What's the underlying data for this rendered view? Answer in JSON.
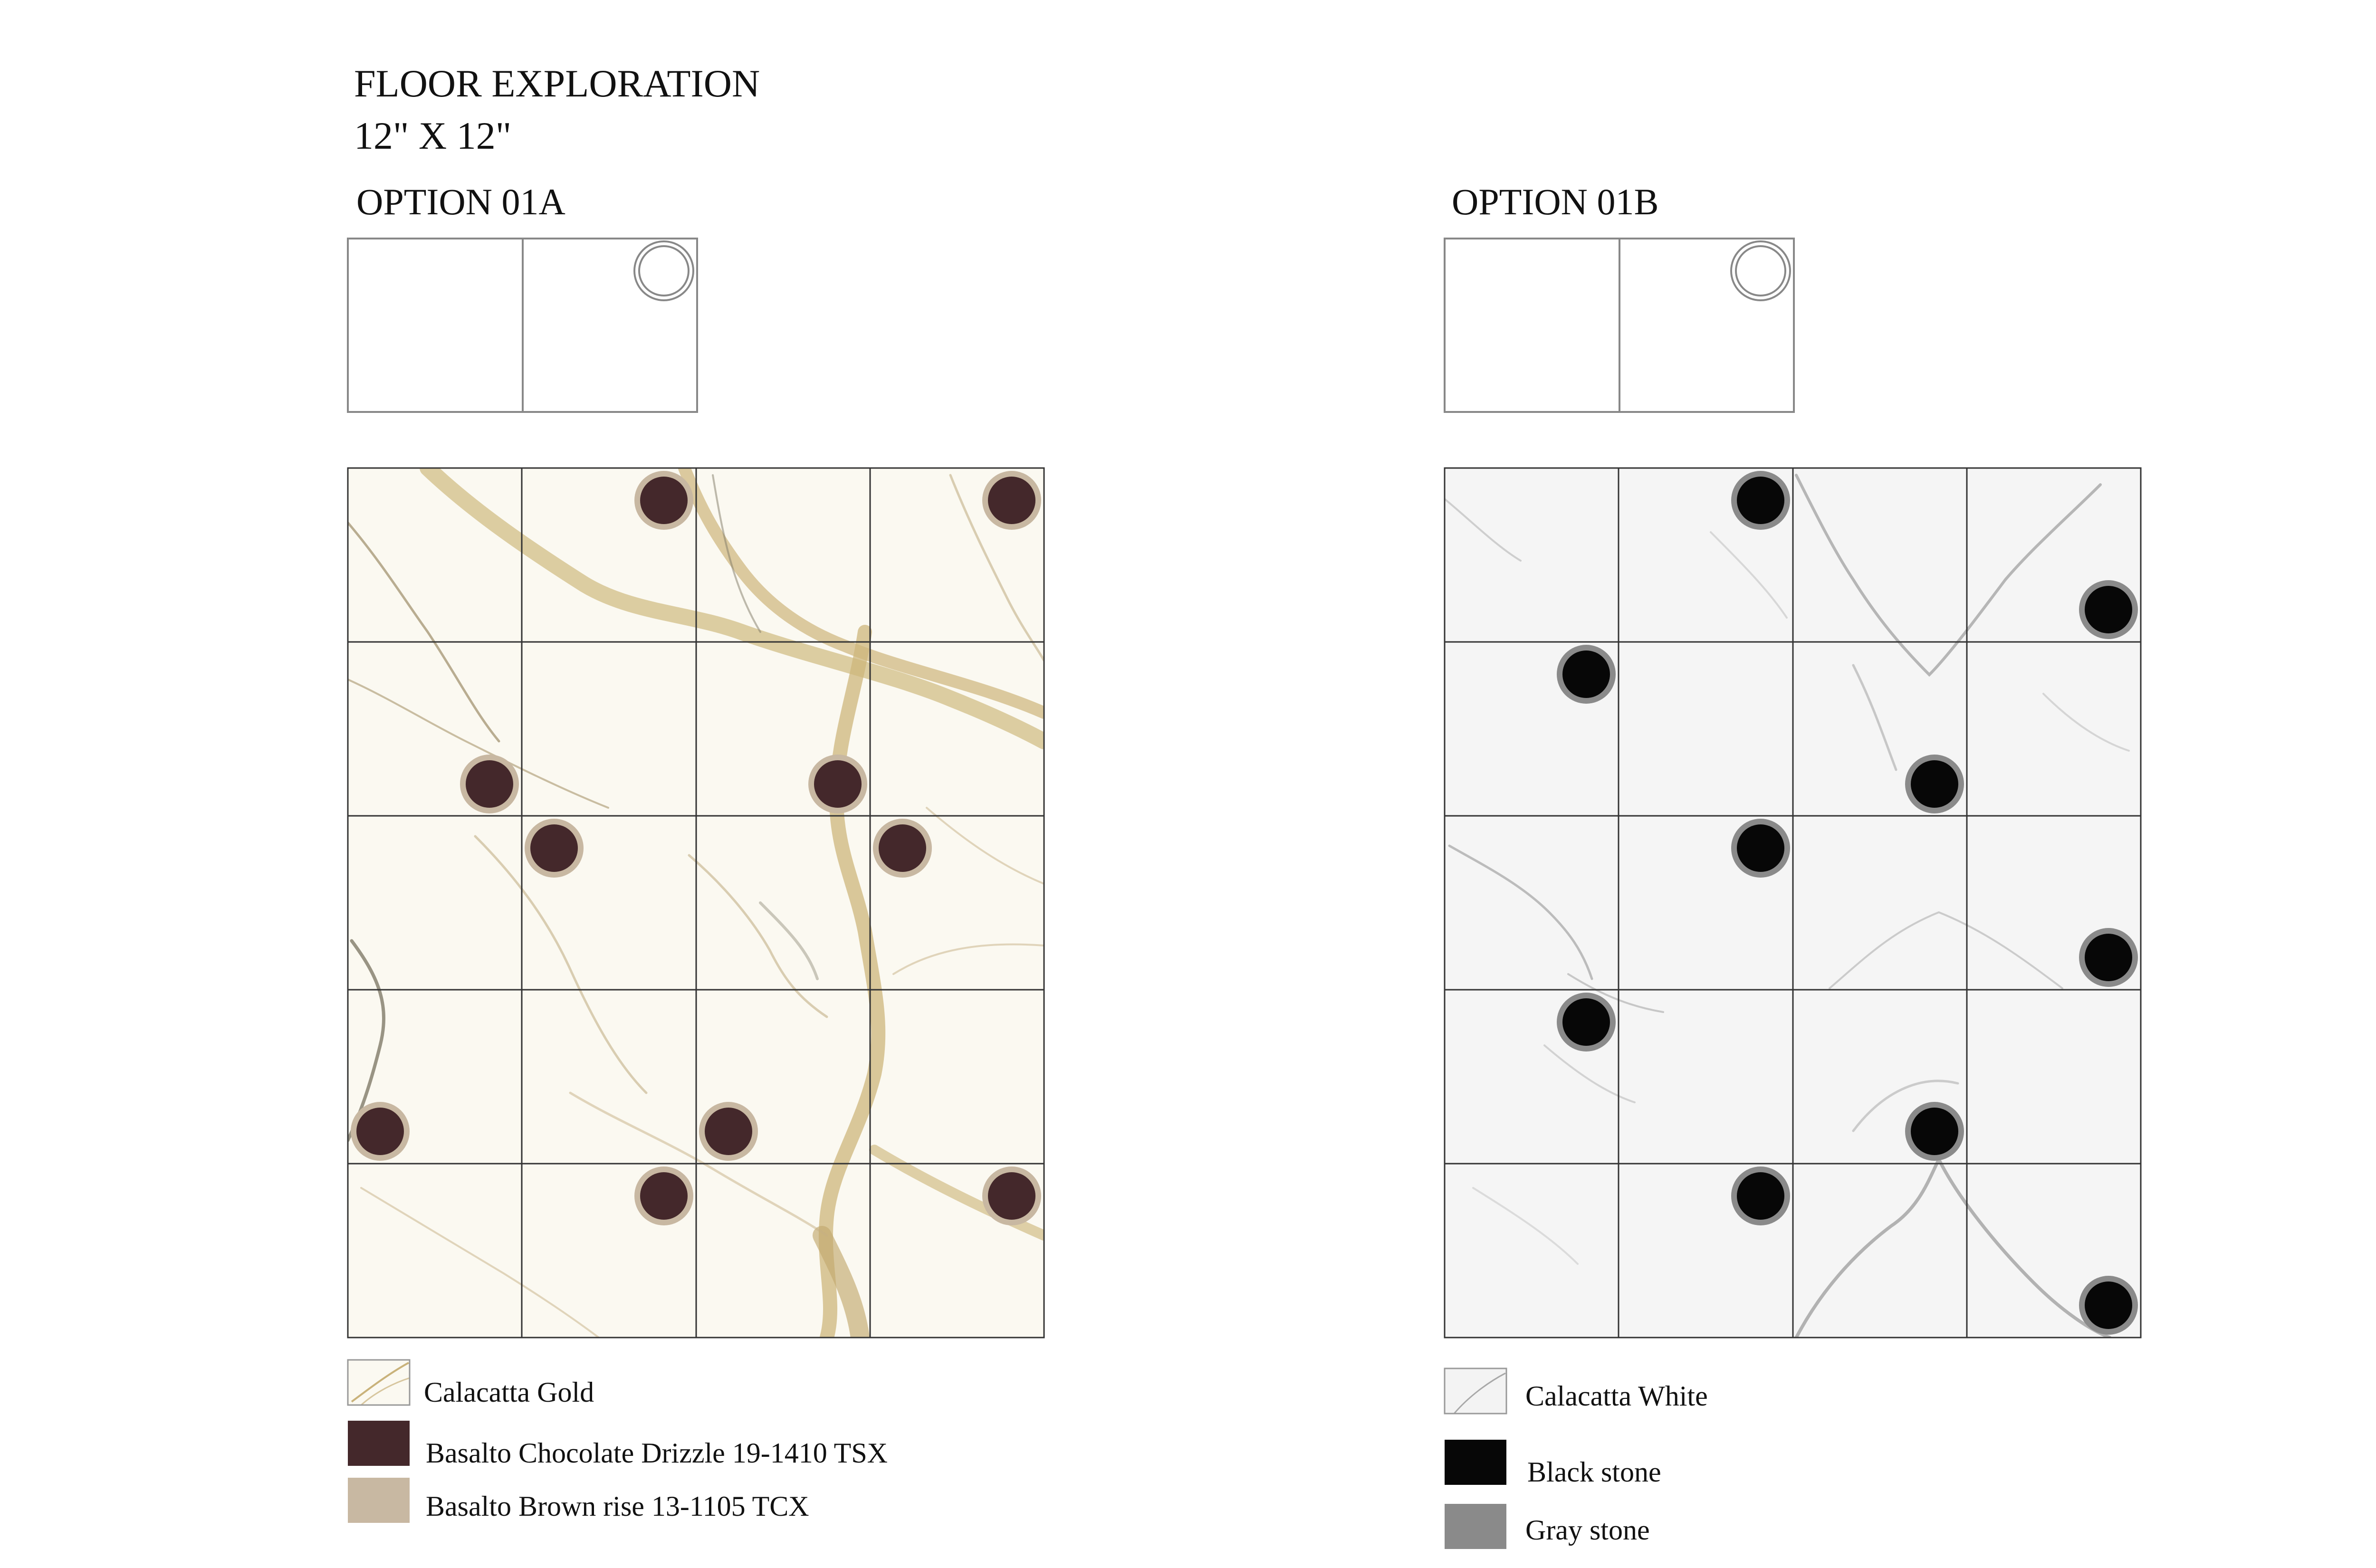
{
  "header": {
    "title": "FLOOR EXPLORATION",
    "size": "12\" X 12\""
  },
  "options": [
    {
      "label": "OPTION 01A",
      "base_color": "#fbf9f1",
      "vein_color": "#c9b27a",
      "vein_color_dark": "#8d7a52",
      "dot_fill": "#44282b",
      "dot_ring": "#c8b8a2",
      "legend": [
        {
          "swatch": "marble-gold",
          "label": "Calacatta Gold"
        },
        {
          "swatch": "#44282b",
          "label": "Basalto Chocolate Drizzle 19-1410 TSX"
        },
        {
          "swatch": "#c8b8a2",
          "label": "Basalto Brown rise 13-1105 TCX"
        }
      ]
    },
    {
      "label": "OPTION 01B",
      "base_color": "#f6f6f6",
      "vein_color": "#b9b9b9",
      "vein_color_dark": "#7a7a7a",
      "dot_fill": "#070707",
      "dot_ring": "#8a8a8a",
      "legend": [
        {
          "swatch": "marble-white",
          "label": "Calacatta White"
        },
        {
          "swatch": "#070707",
          "label": "Black stone"
        },
        {
          "swatch": "#8a8a8a",
          "label": "Gray stone"
        }
      ]
    }
  ]
}
